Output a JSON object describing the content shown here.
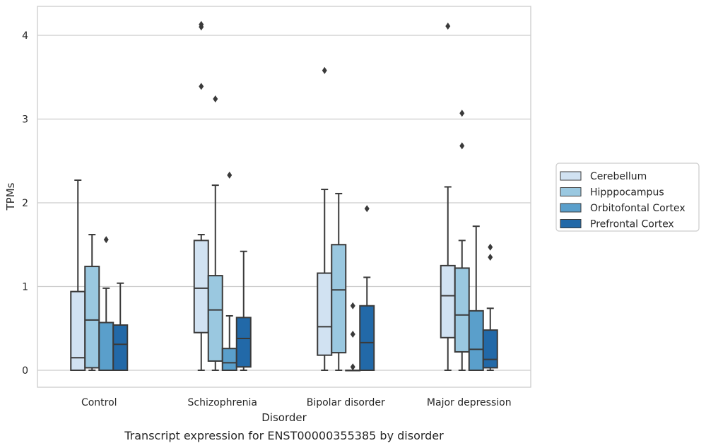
{
  "caption": "Transcript expression for ENST00000355385 by disorder",
  "chart_data": {
    "type": "box",
    "xlabel": "Disorder",
    "ylabel": "TPMs",
    "ylim": [
      -0.2,
      4.35
    ],
    "yticks": [
      0,
      1,
      2,
      3,
      4
    ],
    "grid": true,
    "legend_position": "right",
    "categories": [
      "Control",
      "Schizophrenia",
      "Bipolar disorder",
      "Major depression"
    ],
    "series": [
      {
        "name": "Cerebellum",
        "color": "#d1e2f2",
        "boxes": [
          {
            "whislo": 0,
            "q1": 0,
            "med": 0.15,
            "q3": 0.94,
            "whishi": 2.27,
            "fliers": []
          },
          {
            "whislo": 0,
            "q1": 0.45,
            "med": 0.98,
            "q3": 1.55,
            "whishi": 1.62,
            "fliers": [
              3.39,
              4.1,
              4.13
            ]
          },
          {
            "whislo": 0,
            "q1": 0.18,
            "med": 0.52,
            "q3": 1.16,
            "whishi": 2.16,
            "fliers": [
              3.58
            ]
          },
          {
            "whislo": 0,
            "q1": 0.39,
            "med": 0.89,
            "q3": 1.25,
            "whishi": 2.19,
            "fliers": [
              4.11
            ]
          }
        ]
      },
      {
        "name": "Hipppocampus",
        "color": "#9ac8e0",
        "boxes": [
          {
            "whislo": 0,
            "q1": 0.03,
            "med": 0.6,
            "q3": 1.24,
            "whishi": 1.62,
            "fliers": []
          },
          {
            "whislo": 0,
            "q1": 0.11,
            "med": 0.72,
            "q3": 1.13,
            "whishi": 2.21,
            "fliers": [
              3.24
            ]
          },
          {
            "whislo": 0,
            "q1": 0.21,
            "med": 0.96,
            "q3": 1.5,
            "whishi": 2.11,
            "fliers": []
          },
          {
            "whislo": 0,
            "q1": 0.22,
            "med": 0.66,
            "q3": 1.22,
            "whishi": 1.55,
            "fliers": [
              2.68,
              3.07
            ]
          }
        ]
      },
      {
        "name": "Orbitofontal Cortex",
        "color": "#5a9fcb",
        "boxes": [
          {
            "whislo": 0,
            "q1": 0,
            "med": 0,
            "q3": 0.57,
            "whishi": 0.98,
            "fliers": [
              1.56
            ]
          },
          {
            "whislo": 0,
            "q1": 0,
            "med": 0.09,
            "q3": 0.26,
            "whishi": 0.65,
            "fliers": [
              2.33
            ]
          },
          {
            "whislo": 0,
            "q1": 0,
            "med": 0,
            "q3": 0,
            "whishi": 0,
            "fliers": [
              0.04,
              0.43,
              0.77
            ]
          },
          {
            "whislo": 0,
            "q1": 0,
            "med": 0.25,
            "q3": 0.71,
            "whishi": 1.72,
            "fliers": []
          }
        ]
      },
      {
        "name": "Prefrontal Cortex",
        "color": "#2269a8",
        "boxes": [
          {
            "whislo": 0,
            "q1": 0,
            "med": 0.31,
            "q3": 0.54,
            "whishi": 1.04,
            "fliers": []
          },
          {
            "whislo": 0,
            "q1": 0.04,
            "med": 0.38,
            "q3": 0.63,
            "whishi": 1.42,
            "fliers": []
          },
          {
            "whislo": 0,
            "q1": 0,
            "med": 0.33,
            "q3": 0.77,
            "whishi": 1.11,
            "fliers": [
              1.93
            ]
          },
          {
            "whislo": 0,
            "q1": 0.03,
            "med": 0.13,
            "q3": 0.48,
            "whishi": 0.74,
            "fliers": [
              1.35,
              1.47
            ]
          }
        ]
      }
    ]
  }
}
